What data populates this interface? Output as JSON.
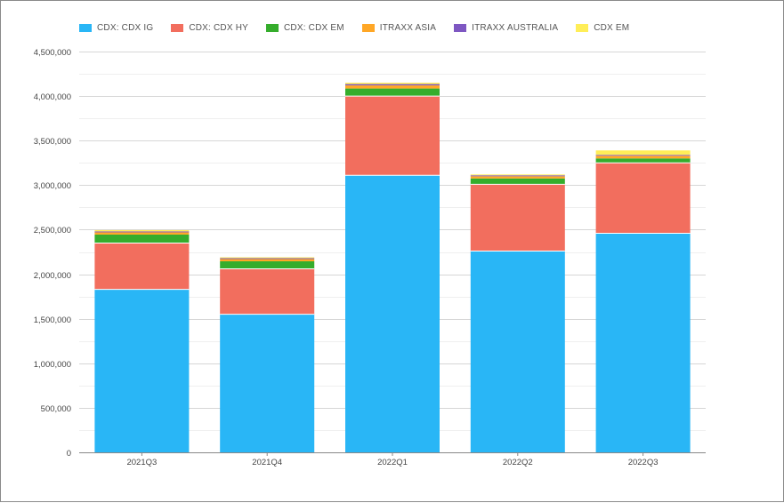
{
  "chart_data": {
    "type": "bar",
    "stacked": true,
    "title": "",
    "xlabel": "",
    "ylabel": "",
    "categories": [
      "2021Q3",
      "2021Q4",
      "2022Q1",
      "2022Q2",
      "2022Q3"
    ],
    "ylim": [
      0,
      4500000
    ],
    "yticks": [
      0,
      500000,
      1000000,
      1500000,
      2000000,
      2500000,
      3000000,
      3500000,
      4000000,
      4500000
    ],
    "ytick_labels": [
      "0",
      "500,000",
      "1,000,000",
      "1,500,000",
      "2,000,000",
      "2,500,000",
      "3,000,000",
      "3,500,000",
      "4,000,000",
      "4,500,000"
    ],
    "grid": true,
    "legend_position": "top-left",
    "series": [
      {
        "name": "CDX: CDX IG",
        "color": "#29b6f6",
        "values": [
          1830000,
          1550000,
          3110000,
          2260000,
          2460000
        ]
      },
      {
        "name": "CDX: CDX HY",
        "color": "#f26e5e",
        "values": [
          520000,
          510000,
          890000,
          750000,
          790000
        ]
      },
      {
        "name": "CDX: CDX EM",
        "color": "#35ad2c",
        "values": [
          95000,
          85000,
          85000,
          65000,
          50000
        ]
      },
      {
        "name": "ITRAXX ASIA",
        "color": "#ffa726",
        "values": [
          25000,
          25000,
          35000,
          25000,
          30000
        ]
      },
      {
        "name": "ITRAXX AUSTRALIA",
        "color": "#7e57c2",
        "values": [
          10000,
          10000,
          15000,
          10000,
          10000
        ]
      },
      {
        "name": "CDX EM",
        "color": "#ffee58",
        "values": [
          15000,
          10000,
          15000,
          10000,
          50000
        ]
      }
    ]
  }
}
